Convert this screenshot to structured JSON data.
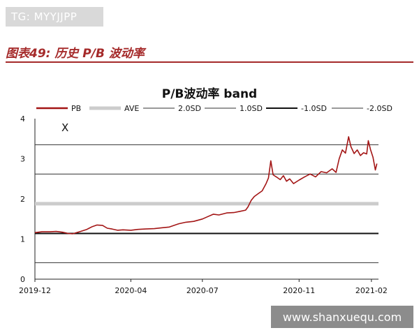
{
  "badge": "TG: MYYJJPP",
  "caption": "图表49: 历史 P/B 波动率",
  "watermark": "www.shanxuequ.com",
  "chart_data": {
    "type": "line",
    "title": "P/B波动率 band",
    "annotation": "X",
    "xlabel": "",
    "ylabel": "",
    "ylim": [
      0,
      4
    ],
    "yticks": [
      "0",
      "1",
      "2",
      "3",
      "4"
    ],
    "xticks": [
      {
        "label": "2019-12",
        "date": "2019-12-01"
      },
      {
        "label": "2020-04",
        "date": "2020-04-01"
      },
      {
        "label": "2020-07",
        "date": "2020-07-01"
      },
      {
        "label": "2020-11",
        "date": "2020-11-01"
      },
      {
        "label": "2021-02",
        "date": "2021-02-01"
      }
    ],
    "legend": [
      {
        "name": "PB",
        "color": "#a31515",
        "style": "solid-thick"
      },
      {
        "name": "AVE",
        "color": "#cccccc",
        "style": "solid-wide"
      },
      {
        "name": "2.0SD",
        "color": "#333333",
        "style": "solid-thin"
      },
      {
        "name": "1.0SD",
        "color": "#333333",
        "style": "solid-thin"
      },
      {
        "name": "-1.0SD",
        "color": "#111111",
        "style": "solid-medium"
      },
      {
        "name": "-2.0SD",
        "color": "#333333",
        "style": "solid-thin"
      }
    ],
    "bands": [
      {
        "name": "AVE",
        "value": 1.88
      },
      {
        "name": "2.0SD",
        "value": 3.35
      },
      {
        "name": "1.0SD",
        "value": 2.62
      },
      {
        "name": "-1.0SD",
        "value": 1.14
      },
      {
        "name": "-2.0SD",
        "value": 0.41
      }
    ],
    "series": [
      {
        "name": "PB",
        "points": [
          [
            "2019-12-01",
            1.16
          ],
          [
            "2019-12-10",
            1.18
          ],
          [
            "2019-12-20",
            1.18
          ],
          [
            "2019-12-28",
            1.19
          ],
          [
            "2020-01-05",
            1.17
          ],
          [
            "2020-01-12",
            1.14
          ],
          [
            "2020-01-18",
            1.13
          ],
          [
            "2020-01-28",
            1.19
          ],
          [
            "2020-02-05",
            1.24
          ],
          [
            "2020-02-12",
            1.31
          ],
          [
            "2020-02-18",
            1.35
          ],
          [
            "2020-02-25",
            1.34
          ],
          [
            "2020-03-02",
            1.27
          ],
          [
            "2020-03-08",
            1.25
          ],
          [
            "2020-03-15",
            1.22
          ],
          [
            "2020-03-22",
            1.23
          ],
          [
            "2020-04-01",
            1.22
          ],
          [
            "2020-04-10",
            1.24
          ],
          [
            "2020-04-20",
            1.25
          ],
          [
            "2020-05-01",
            1.26
          ],
          [
            "2020-05-10",
            1.28
          ],
          [
            "2020-05-20",
            1.3
          ],
          [
            "2020-06-01",
            1.38
          ],
          [
            "2020-06-10",
            1.42
          ],
          [
            "2020-06-20",
            1.44
          ],
          [
            "2020-07-01",
            1.5
          ],
          [
            "2020-07-08",
            1.56
          ],
          [
            "2020-07-15",
            1.62
          ],
          [
            "2020-07-22",
            1.6
          ],
          [
            "2020-08-01",
            1.65
          ],
          [
            "2020-08-10",
            1.66
          ],
          [
            "2020-08-18",
            1.69
          ],
          [
            "2020-08-25",
            1.72
          ],
          [
            "2020-08-28",
            1.8
          ],
          [
            "2020-09-01",
            1.96
          ],
          [
            "2020-09-05",
            2.06
          ],
          [
            "2020-09-10",
            2.13
          ],
          [
            "2020-09-15",
            2.2
          ],
          [
            "2020-09-20",
            2.38
          ],
          [
            "2020-09-23",
            2.52
          ],
          [
            "2020-09-26",
            2.95
          ],
          [
            "2020-09-29",
            2.6
          ],
          [
            "2020-10-03",
            2.55
          ],
          [
            "2020-10-08",
            2.48
          ],
          [
            "2020-10-12",
            2.58
          ],
          [
            "2020-10-16",
            2.44
          ],
          [
            "2020-10-20",
            2.5
          ],
          [
            "2020-10-25",
            2.38
          ],
          [
            "2020-11-01",
            2.47
          ],
          [
            "2020-11-08",
            2.55
          ],
          [
            "2020-11-15",
            2.62
          ],
          [
            "2020-11-22",
            2.55
          ],
          [
            "2020-11-29",
            2.68
          ],
          [
            "2020-12-06",
            2.65
          ],
          [
            "2020-12-13",
            2.75
          ],
          [
            "2020-12-18",
            2.66
          ],
          [
            "2020-12-22",
            3.0
          ],
          [
            "2020-12-26",
            3.22
          ],
          [
            "2020-12-30",
            3.14
          ],
          [
            "2021-01-03",
            3.55
          ],
          [
            "2021-01-06",
            3.3
          ],
          [
            "2021-01-10",
            3.13
          ],
          [
            "2021-01-14",
            3.22
          ],
          [
            "2021-01-18",
            3.08
          ],
          [
            "2021-01-22",
            3.15
          ],
          [
            "2021-01-26",
            3.12
          ],
          [
            "2021-01-28",
            3.45
          ],
          [
            "2021-01-31",
            3.22
          ],
          [
            "2021-02-03",
            3.04
          ],
          [
            "2021-02-06",
            2.72
          ],
          [
            "2021-02-08",
            2.88
          ]
        ]
      }
    ]
  }
}
